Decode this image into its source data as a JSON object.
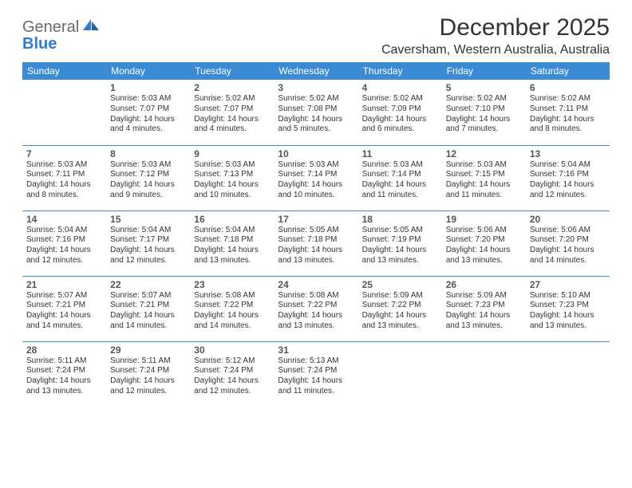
{
  "brand": {
    "part1": "General",
    "part2": "Blue"
  },
  "title": "December 2025",
  "location": "Caversham, Western Australia, Australia",
  "colors": {
    "header_bg": "#3b8bd4",
    "header_text": "#ffffff",
    "rule": "#3b8bd4",
    "text": "#333333",
    "logo_gray": "#6b6b6b",
    "logo_blue": "#2d7dd2"
  },
  "weekdays": [
    "Sunday",
    "Monday",
    "Tuesday",
    "Wednesday",
    "Thursday",
    "Friday",
    "Saturday"
  ],
  "labels": {
    "sunrise": "Sunrise:",
    "sunset": "Sunset:",
    "daylight": "Daylight:"
  },
  "weeks": [
    [
      null,
      {
        "n": "1",
        "sr": "5:03 AM",
        "ss": "7:07 PM",
        "dl": "14 hours and 4 minutes."
      },
      {
        "n": "2",
        "sr": "5:02 AM",
        "ss": "7:07 PM",
        "dl": "14 hours and 4 minutes."
      },
      {
        "n": "3",
        "sr": "5:02 AM",
        "ss": "7:08 PM",
        "dl": "14 hours and 5 minutes."
      },
      {
        "n": "4",
        "sr": "5:02 AM",
        "ss": "7:09 PM",
        "dl": "14 hours and 6 minutes."
      },
      {
        "n": "5",
        "sr": "5:02 AM",
        "ss": "7:10 PM",
        "dl": "14 hours and 7 minutes."
      },
      {
        "n": "6",
        "sr": "5:02 AM",
        "ss": "7:11 PM",
        "dl": "14 hours and 8 minutes."
      }
    ],
    [
      {
        "n": "7",
        "sr": "5:03 AM",
        "ss": "7:11 PM",
        "dl": "14 hours and 8 minutes."
      },
      {
        "n": "8",
        "sr": "5:03 AM",
        "ss": "7:12 PM",
        "dl": "14 hours and 9 minutes."
      },
      {
        "n": "9",
        "sr": "5:03 AM",
        "ss": "7:13 PM",
        "dl": "14 hours and 10 minutes."
      },
      {
        "n": "10",
        "sr": "5:03 AM",
        "ss": "7:14 PM",
        "dl": "14 hours and 10 minutes."
      },
      {
        "n": "11",
        "sr": "5:03 AM",
        "ss": "7:14 PM",
        "dl": "14 hours and 11 minutes."
      },
      {
        "n": "12",
        "sr": "5:03 AM",
        "ss": "7:15 PM",
        "dl": "14 hours and 11 minutes."
      },
      {
        "n": "13",
        "sr": "5:04 AM",
        "ss": "7:16 PM",
        "dl": "14 hours and 12 minutes."
      }
    ],
    [
      {
        "n": "14",
        "sr": "5:04 AM",
        "ss": "7:16 PM",
        "dl": "14 hours and 12 minutes."
      },
      {
        "n": "15",
        "sr": "5:04 AM",
        "ss": "7:17 PM",
        "dl": "14 hours and 12 minutes."
      },
      {
        "n": "16",
        "sr": "5:04 AM",
        "ss": "7:18 PM",
        "dl": "14 hours and 13 minutes."
      },
      {
        "n": "17",
        "sr": "5:05 AM",
        "ss": "7:18 PM",
        "dl": "14 hours and 13 minutes."
      },
      {
        "n": "18",
        "sr": "5:05 AM",
        "ss": "7:19 PM",
        "dl": "14 hours and 13 minutes."
      },
      {
        "n": "19",
        "sr": "5:06 AM",
        "ss": "7:20 PM",
        "dl": "14 hours and 13 minutes."
      },
      {
        "n": "20",
        "sr": "5:06 AM",
        "ss": "7:20 PM",
        "dl": "14 hours and 14 minutes."
      }
    ],
    [
      {
        "n": "21",
        "sr": "5:07 AM",
        "ss": "7:21 PM",
        "dl": "14 hours and 14 minutes."
      },
      {
        "n": "22",
        "sr": "5:07 AM",
        "ss": "7:21 PM",
        "dl": "14 hours and 14 minutes."
      },
      {
        "n": "23",
        "sr": "5:08 AM",
        "ss": "7:22 PM",
        "dl": "14 hours and 14 minutes."
      },
      {
        "n": "24",
        "sr": "5:08 AM",
        "ss": "7:22 PM",
        "dl": "14 hours and 13 minutes."
      },
      {
        "n": "25",
        "sr": "5:09 AM",
        "ss": "7:22 PM",
        "dl": "14 hours and 13 minutes."
      },
      {
        "n": "26",
        "sr": "5:09 AM",
        "ss": "7:23 PM",
        "dl": "14 hours and 13 minutes."
      },
      {
        "n": "27",
        "sr": "5:10 AM",
        "ss": "7:23 PM",
        "dl": "14 hours and 13 minutes."
      }
    ],
    [
      {
        "n": "28",
        "sr": "5:11 AM",
        "ss": "7:24 PM",
        "dl": "14 hours and 13 minutes."
      },
      {
        "n": "29",
        "sr": "5:11 AM",
        "ss": "7:24 PM",
        "dl": "14 hours and 12 minutes."
      },
      {
        "n": "30",
        "sr": "5:12 AM",
        "ss": "7:24 PM",
        "dl": "14 hours and 12 minutes."
      },
      {
        "n": "31",
        "sr": "5:13 AM",
        "ss": "7:24 PM",
        "dl": "14 hours and 11 minutes."
      },
      null,
      null,
      null
    ]
  ]
}
